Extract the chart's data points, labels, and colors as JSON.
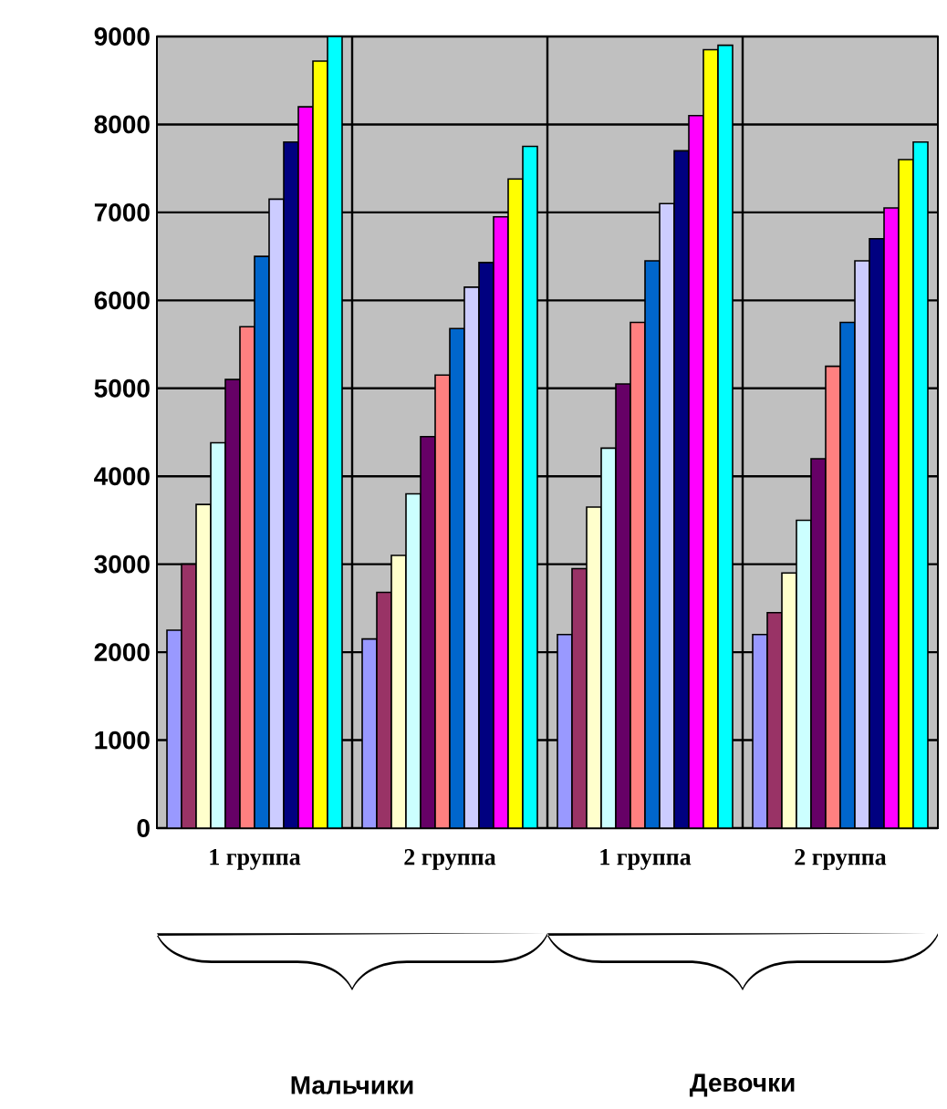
{
  "chart_data": {
    "type": "bar",
    "categories": [
      "1 группа",
      "2 группа",
      "1 группа",
      "2 группа"
    ],
    "series": [
      {
        "color": "#9999ff",
        "values": [
          2250,
          2150,
          2200,
          2200
        ]
      },
      {
        "color": "#993366",
        "values": [
          3000,
          2680,
          2950,
          2450
        ]
      },
      {
        "color": "#ffffcc",
        "values": [
          3680,
          3100,
          3650,
          2900
        ]
      },
      {
        "color": "#ccffff",
        "values": [
          4380,
          3800,
          4320,
          3500
        ]
      },
      {
        "color": "#660066",
        "values": [
          5100,
          4450,
          5050,
          4200
        ]
      },
      {
        "color": "#ff8080",
        "values": [
          5700,
          5150,
          5750,
          5250
        ]
      },
      {
        "color": "#0066cc",
        "values": [
          6500,
          5680,
          6450,
          5750
        ]
      },
      {
        "color": "#ccccff",
        "values": [
          7150,
          6150,
          7100,
          6450
        ]
      },
      {
        "color": "#000080",
        "values": [
          7800,
          6430,
          7700,
          6700
        ]
      },
      {
        "color": "#ff00ff",
        "values": [
          8200,
          6950,
          8100,
          7050
        ]
      },
      {
        "color": "#ffff00",
        "values": [
          8720,
          7380,
          8850,
          7600
        ]
      },
      {
        "color": "#00ffff",
        "values": [
          9000,
          7750,
          8900,
          7800
        ]
      }
    ],
    "annotations": [
      "Мальчики",
      "Девочки"
    ],
    "ylim": [
      0,
      9000
    ],
    "yticks": [
      0,
      1000,
      2000,
      3000,
      4000,
      5000,
      6000,
      7000,
      8000,
      9000
    ],
    "grid": true
  }
}
